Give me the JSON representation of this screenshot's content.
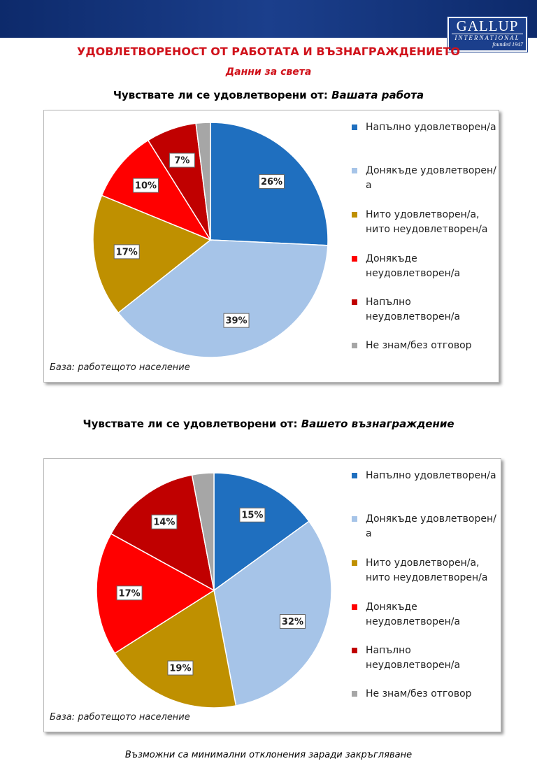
{
  "header": {
    "title": "УДОВЛЕТВОРЕНОСТ ОТ РАБОТАТА И ВЪЗНАГРАЖДЕНИЕТО",
    "subtitle": "Данни за света",
    "logo": {
      "name": "GALLUP",
      "sub": "INTERNATIONAL",
      "founded": "founded 1947"
    }
  },
  "chart_data": [
    {
      "type": "pie",
      "title": "Чувствате ли се удовлетворени от:",
      "title_topic": "Вашата работа",
      "categories": [
        "Напълно удовлетворен/а",
        "Донякъде удовлетворен/а",
        "Нито удовлетворен/а, нито неудовлетворен/а",
        "Донякъде неудовлетворен/а",
        "Напълно неудовлетворен/а",
        "Не знам/без отговор"
      ],
      "values": [
        26,
        39,
        17,
        10,
        7,
        2
      ],
      "value_labels": [
        "26%",
        "39%",
        "17%",
        "10%",
        "7%",
        null
      ],
      "colors": [
        "#1f6fbf",
        "#a6c4e8",
        "#bf9000",
        "#ff0000",
        "#c00000",
        "#a6a6a6"
      ],
      "note": "База: работещото население"
    },
    {
      "type": "pie",
      "title": "Чувствате ли се удовлетворени от:",
      "title_topic": "Вашето възнаграждение",
      "categories": [
        "Напълно удовлетворен/а",
        "Донякъде удовлетворен/а",
        "Нито удовлетворен/а, нито неудовлетворен/а",
        "Донякъде неудовлетворен/а",
        "Напълно неудовлетворен/а",
        "Не знам/без отговор"
      ],
      "values": [
        15,
        32,
        19,
        17,
        14,
        3
      ],
      "value_labels": [
        "15%",
        "32%",
        "19%",
        "17%",
        "14%",
        null
      ],
      "colors": [
        "#1f6fbf",
        "#a6c4e8",
        "#bf9000",
        "#ff0000",
        "#c00000",
        "#a6a6a6"
      ],
      "note": "База: работещото население"
    }
  ],
  "footer": {
    "note": "Възможни са минимални отклонения заради закръгляване"
  }
}
